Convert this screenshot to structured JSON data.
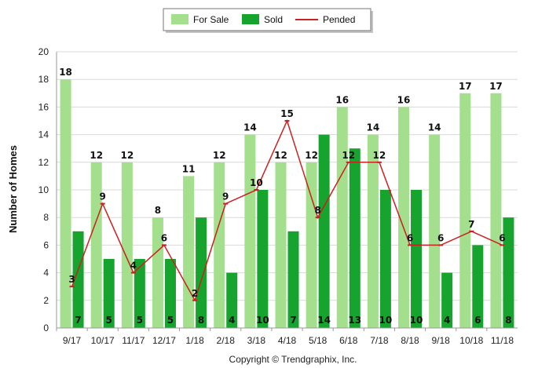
{
  "colors": {
    "for_sale": "#a3df8d",
    "sold": "#16a32e",
    "pended": "#cc1f1f",
    "grid": "#d9d9d9",
    "axis": "#999999"
  },
  "copyright": "Copyright © Trendgraphix, Inc.",
  "chart_data": {
    "type": "bar",
    "ylabel": "Number of Homes",
    "xlabel": "",
    "ylim": [
      0,
      20
    ],
    "yticks": [
      0,
      2,
      4,
      6,
      8,
      10,
      12,
      14,
      16,
      18,
      20
    ],
    "grid": true,
    "legend_position": "top-center",
    "categories": [
      "9/17",
      "10/17",
      "11/17",
      "12/17",
      "1/18",
      "2/18",
      "3/18",
      "4/18",
      "5/18",
      "6/18",
      "7/18",
      "8/18",
      "9/18",
      "10/18",
      "11/18"
    ],
    "series": [
      {
        "name": "For Sale",
        "type": "bar",
        "values": [
          18,
          12,
          12,
          8,
          11,
          12,
          14,
          12,
          12,
          16,
          14,
          16,
          14,
          17,
          17
        ]
      },
      {
        "name": "Sold",
        "type": "bar",
        "values": [
          7,
          5,
          5,
          5,
          8,
          4,
          10,
          7,
          14,
          13,
          10,
          10,
          4,
          6,
          8
        ]
      },
      {
        "name": "Pended",
        "type": "line",
        "values": [
          3,
          9,
          4,
          6,
          2,
          9,
          10,
          15,
          8,
          12,
          12,
          6,
          6,
          7,
          6
        ]
      }
    ]
  }
}
